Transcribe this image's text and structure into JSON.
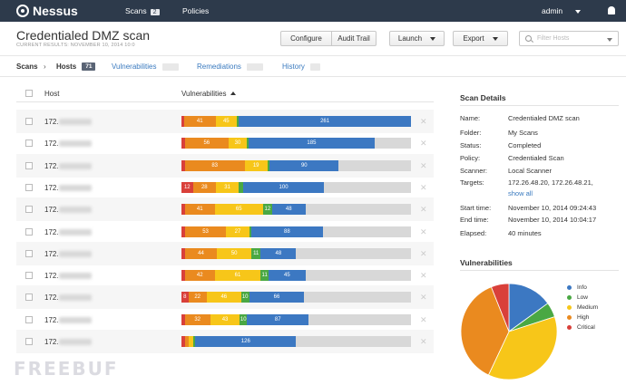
{
  "nav": {
    "brand": "Nessus",
    "scans_label": "Scans",
    "scans_count": "2",
    "policies_label": "Policies",
    "user": "admin"
  },
  "header": {
    "title": "Credentialed DMZ scan",
    "subtitle": "CURRENT RESULTS: NOVEMBER 10, 2014 10:0",
    "buttons": {
      "configure": "Configure",
      "audit_trail": "Audit Trail",
      "launch": "Launch",
      "export": "Export"
    },
    "filter_placeholder": "Filter Hosts"
  },
  "tabs": {
    "scans": "Scans",
    "hosts": "Hosts",
    "hosts_count": "71",
    "vulnerabilities": "Vulnerabilities",
    "vulnerabilities_count": "",
    "remediations": "Remediations",
    "remediations_count": "",
    "history": "History",
    "history_count": ""
  },
  "table": {
    "col_host": "Host",
    "col_vulnerabilities": "Vulnerabilities",
    "remove_symbol": "✕",
    "rows": [
      {
        "host": "172.",
        "segments": [
          {
            "severity": "critical",
            "pct": 1,
            "label": ""
          },
          {
            "severity": "high",
            "pct": 14,
            "label": "41"
          },
          {
            "severity": "medium",
            "pct": 9,
            "label": "45"
          },
          {
            "severity": "low",
            "pct": 1,
            "label": ""
          },
          {
            "severity": "info",
            "pct": 75,
            "label": "261"
          }
        ]
      },
      {
        "host": "172.",
        "segments": [
          {
            "severity": "critical",
            "pct": 1.5,
            "label": ""
          },
          {
            "severity": "high",
            "pct": 19,
            "label": "56"
          },
          {
            "severity": "medium",
            "pct": 8,
            "label": "30"
          },
          {
            "severity": "low",
            "pct": 0.7,
            "label": ""
          },
          {
            "severity": "info",
            "pct": 55,
            "label": "185"
          }
        ]
      },
      {
        "host": "172.",
        "segments": [
          {
            "severity": "critical",
            "pct": 1.5,
            "label": ""
          },
          {
            "severity": "high",
            "pct": 26,
            "label": "83"
          },
          {
            "severity": "medium",
            "pct": 10,
            "label": "19"
          },
          {
            "severity": "low",
            "pct": 1,
            "label": ""
          },
          {
            "severity": "info",
            "pct": 30,
            "label": "90"
          }
        ]
      },
      {
        "host": "172.",
        "segments": [
          {
            "severity": "critical",
            "pct": 5,
            "label": "12"
          },
          {
            "severity": "high",
            "pct": 10,
            "label": "28"
          },
          {
            "severity": "medium",
            "pct": 10,
            "label": "31"
          },
          {
            "severity": "low",
            "pct": 2,
            "label": ""
          },
          {
            "severity": "info",
            "pct": 35,
            "label": "100"
          }
        ]
      },
      {
        "host": "172.",
        "segments": [
          {
            "severity": "critical",
            "pct": 1.5,
            "label": ""
          },
          {
            "severity": "high",
            "pct": 13,
            "label": "41"
          },
          {
            "severity": "medium",
            "pct": 21,
            "label": "65"
          },
          {
            "severity": "low",
            "pct": 4,
            "label": "12"
          },
          {
            "severity": "info",
            "pct": 14.5,
            "label": "48"
          }
        ]
      },
      {
        "host": "172.",
        "segments": [
          {
            "severity": "critical",
            "pct": 1.5,
            "label": ""
          },
          {
            "severity": "high",
            "pct": 18,
            "label": "53"
          },
          {
            "severity": "medium",
            "pct": 10,
            "label": "27"
          },
          {
            "severity": "low",
            "pct": 1,
            "label": ""
          },
          {
            "severity": "info",
            "pct": 31,
            "label": "88"
          }
        ]
      },
      {
        "host": "172.",
        "segments": [
          {
            "severity": "critical",
            "pct": 1.5,
            "label": ""
          },
          {
            "severity": "high",
            "pct": 14,
            "label": "44"
          },
          {
            "severity": "medium",
            "pct": 15,
            "label": "50"
          },
          {
            "severity": "low",
            "pct": 4,
            "label": "11"
          },
          {
            "severity": "info",
            "pct": 15.5,
            "label": "48"
          }
        ]
      },
      {
        "host": "172.",
        "segments": [
          {
            "severity": "critical",
            "pct": 1.5,
            "label": ""
          },
          {
            "severity": "high",
            "pct": 13,
            "label": "42"
          },
          {
            "severity": "medium",
            "pct": 20,
            "label": "61"
          },
          {
            "severity": "low",
            "pct": 3.5,
            "label": "11"
          },
          {
            "severity": "info",
            "pct": 16,
            "label": "45"
          }
        ]
      },
      {
        "host": "172.",
        "segments": [
          {
            "severity": "critical",
            "pct": 3,
            "label": "8"
          },
          {
            "severity": "high",
            "pct": 8,
            "label": "22"
          },
          {
            "severity": "medium",
            "pct": 15,
            "label": "46"
          },
          {
            "severity": "low",
            "pct": 3.5,
            "label": "10"
          },
          {
            "severity": "info",
            "pct": 24,
            "label": "66"
          }
        ]
      },
      {
        "host": "172.",
        "segments": [
          {
            "severity": "critical",
            "pct": 1.5,
            "label": ""
          },
          {
            "severity": "high",
            "pct": 11,
            "label": "32"
          },
          {
            "severity": "medium",
            "pct": 13,
            "label": "43"
          },
          {
            "severity": "low",
            "pct": 3,
            "label": "10"
          },
          {
            "severity": "info",
            "pct": 27,
            "label": "87"
          }
        ]
      },
      {
        "host": "172.",
        "segments": [
          {
            "severity": "critical",
            "pct": 1.5,
            "label": ""
          },
          {
            "severity": "high",
            "pct": 1.5,
            "label": ""
          },
          {
            "severity": "medium",
            "pct": 2,
            "label": ""
          },
          {
            "severity": "low",
            "pct": 1,
            "label": ""
          },
          {
            "severity": "info",
            "pct": 44,
            "label": "126"
          }
        ]
      }
    ]
  },
  "scan_details": {
    "title": "Scan Details",
    "name_label": "Name:",
    "name": "Credentialed DMZ scan",
    "folder_label": "Folder:",
    "folder": "My Scans",
    "status_label": "Status:",
    "status": "Completed",
    "policy_label": "Policy:",
    "policy": "Credentialed Scan",
    "scanner_label": "Scanner:",
    "scanner": "Local Scanner",
    "targets_label": "Targets:",
    "targets": "172.26.48.20, 172.26.48.21,",
    "show_all": "show all",
    "start_label": "Start time:",
    "start": "November 10, 2014 09:24:43",
    "end_label": "End time:",
    "end": "November 10, 2014 10:04:17",
    "elapsed_label": "Elapsed:",
    "elapsed": "40 minutes"
  },
  "vuln_chart": {
    "title": "Vulnerabilities",
    "legend": [
      {
        "label": "Info",
        "color": "#3c78c2"
      },
      {
        "label": "Low",
        "color": "#4aa843"
      },
      {
        "label": "Medium",
        "color": "#f7c619"
      },
      {
        "label": "High",
        "color": "#ea8a1f"
      },
      {
        "label": "Critical",
        "color": "#d9403a"
      }
    ],
    "shares": {
      "info": 0.15,
      "low": 0.05,
      "medium": 0.37,
      "high": 0.37,
      "critical": 0.06
    }
  },
  "colors": {
    "critical": "#d9403a",
    "high": "#ea8a1f",
    "medium": "#f7c619",
    "low": "#4aa843",
    "info": "#3c78c2",
    "nav_bg": "#2d3a4b",
    "link": "#3a7abf"
  },
  "watermark": "FREEBUF"
}
